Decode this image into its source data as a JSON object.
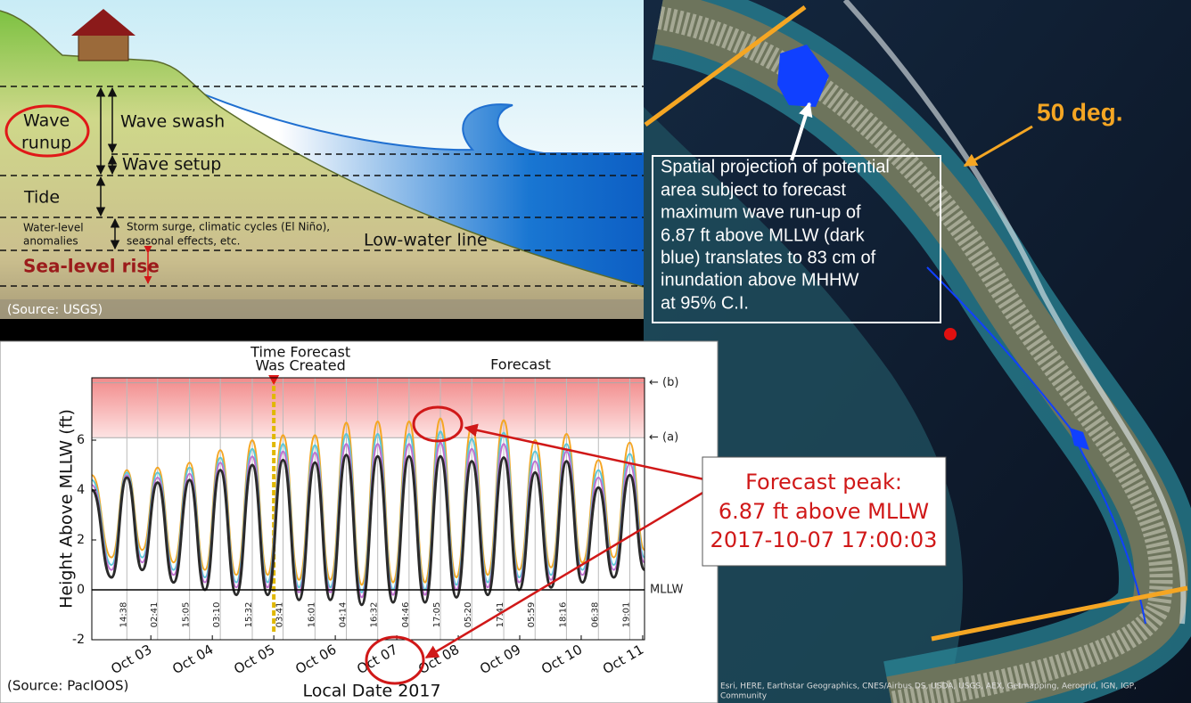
{
  "diagram": {
    "wave_runup": [
      "Wave",
      "runup"
    ],
    "wave_swash": "Wave swash",
    "wave_setup": "Wave setup",
    "tide": "Tide",
    "anomalies": [
      "Water-level",
      "anomalies"
    ],
    "anomalies_note": [
      "Storm surge, climatic cycles (El Niño),",
      "seasonal effects, etc."
    ],
    "low_water_line": "Low-water line",
    "sea_level_rise": "Sea-level rise",
    "source": "(Source: USGS)"
  },
  "map": {
    "angle_label": "50 deg.",
    "annotation": [
      "Spatial projection of potential",
      "area subject to forecast",
      "maximum wave run-up of",
      "6.87 ft above MLLW (dark",
      "blue) translates to 83 cm of",
      "inundation above MHHW",
      "at 95% C.I."
    ],
    "attribution": [
      "Esri, HERE, Earthstar Geographics, CNES/Airbus DS, USDA, USGS, AEX, Getmapping, Aerogrid, IGN, IGP,",
      "Community"
    ]
  },
  "callout": [
    "Forecast peak:",
    "6.87 ft above MLLW",
    "2017-10-07  17:00:03"
  ],
  "chart_data": {
    "type": "line",
    "created_label": [
      "Time Forecast",
      "Was Created"
    ],
    "created_x": 5.0,
    "forecast_label": "Forecast",
    "ylabel": "Height Above MLLW (ft)",
    "xlabel": "Local Date 2017",
    "source": "(Source: PacIOOS)",
    "x": [
      2.04,
      2.36,
      2.61,
      2.86,
      3.11,
      3.37,
      3.63,
      3.88,
      4.13,
      4.39,
      4.65,
      4.9,
      5.15,
      5.41,
      5.67,
      5.92,
      6.18,
      6.43,
      6.69,
      6.94,
      7.2,
      7.46,
      7.71,
      7.97,
      8.22,
      8.48,
      8.74,
      8.99,
      9.25,
      9.51,
      9.76,
      10.02,
      10.28,
      10.53,
      10.79,
      11.03
    ],
    "series": [
      {
        "color": "#f5a623",
        "values": [
          4.6,
          1.3,
          4.8,
          1.6,
          4.9,
          1.1,
          5.1,
          0.8,
          5.6,
          0.6,
          6.0,
          0.6,
          6.2,
          0.4,
          6.2,
          0.4,
          6.7,
          0.2,
          6.75,
          0.3,
          6.75,
          0.3,
          6.87,
          0.5,
          6.55,
          0.6,
          6.8,
          0.8,
          6.0,
          0.9,
          6.25,
          1.1,
          5.2,
          1.3,
          5.9,
          1.6
        ]
      },
      {
        "color": "#5cc8d8",
        "values": [
          4.4,
          1.0,
          4.7,
          1.3,
          4.7,
          0.8,
          4.9,
          0.5,
          5.3,
          0.3,
          5.65,
          0.3,
          5.85,
          0.1,
          5.8,
          0.1,
          6.25,
          -0.1,
          6.25,
          0.0,
          6.25,
          0.0,
          6.35,
          0.2,
          6.05,
          0.3,
          6.3,
          0.5,
          5.55,
          0.6,
          5.85,
          0.8,
          4.8,
          1.0,
          5.45,
          1.3
        ]
      },
      {
        "color": "#c070d0",
        "values": [
          4.2,
          0.8,
          4.6,
          1.1,
          4.5,
          0.6,
          4.65,
          0.3,
          5.1,
          0.1,
          5.35,
          0.1,
          5.55,
          -0.1,
          5.5,
          -0.1,
          5.85,
          -0.3,
          5.85,
          -0.2,
          5.85,
          -0.2,
          5.9,
          0.0,
          5.65,
          0.1,
          5.85,
          0.3,
          5.15,
          0.4,
          5.55,
          0.6,
          4.5,
          0.8,
          5.05,
          1.1
        ]
      },
      {
        "color": "#2a2a2a",
        "values": [
          4.0,
          0.5,
          4.5,
          0.8,
          4.3,
          0.3,
          4.4,
          0.0,
          4.8,
          -0.2,
          5.0,
          -0.2,
          5.2,
          -0.4,
          5.1,
          -0.4,
          5.4,
          -0.6,
          5.35,
          -0.5,
          5.35,
          -0.5,
          5.35,
          -0.3,
          5.15,
          -0.2,
          5.3,
          0.0,
          4.7,
          0.1,
          5.15,
          0.3,
          4.1,
          0.5,
          4.6,
          0.8
        ]
      }
    ],
    "xlim": [
      2.04,
      11.03
    ],
    "ylim": [
      -2,
      8.5
    ],
    "xticks": [
      {
        "value": 3,
        "label": "Oct 03"
      },
      {
        "value": 4,
        "label": "Oct 04"
      },
      {
        "value": 5,
        "label": "Oct 05"
      },
      {
        "value": 6,
        "label": "Oct 06"
      },
      {
        "value": 7,
        "label": "Oct 07"
      },
      {
        "value": 8,
        "label": "Oct 08"
      },
      {
        "value": 9,
        "label": "Oct 09"
      },
      {
        "value": 10,
        "label": "Oct 10"
      },
      {
        "value": 11,
        "label": "Oct 11"
      }
    ],
    "yticks": [
      -2,
      0,
      2,
      4,
      6
    ],
    "time_ticks": [
      {
        "value": 2.61,
        "label": "14:38"
      },
      {
        "value": 3.11,
        "label": "02:41"
      },
      {
        "value": 3.63,
        "label": "15:05"
      },
      {
        "value": 4.13,
        "label": "03:10"
      },
      {
        "value": 4.65,
        "label": "15:32"
      },
      {
        "value": 5.15,
        "label": "03:41"
      },
      {
        "value": 5.67,
        "label": "16:01"
      },
      {
        "value": 6.18,
        "label": "04:14"
      },
      {
        "value": 6.69,
        "label": "16:32"
      },
      {
        "value": 7.2,
        "label": "04:46"
      },
      {
        "value": 7.71,
        "label": "17:05"
      },
      {
        "value": 8.22,
        "label": "05:20"
      },
      {
        "value": 8.74,
        "label": "17:41"
      },
      {
        "value": 9.25,
        "label": "05:59"
      },
      {
        "value": 9.76,
        "label": "18:16"
      },
      {
        "value": 10.28,
        "label": "06:38"
      },
      {
        "value": 10.79,
        "label": "19:01"
      }
    ],
    "thresholds": [
      {
        "value": 8.3,
        "label": "← (b)"
      },
      {
        "value": 6.1,
        "label": "← (a)"
      }
    ],
    "reference_line": {
      "value": 0,
      "label": "MLLW"
    }
  }
}
